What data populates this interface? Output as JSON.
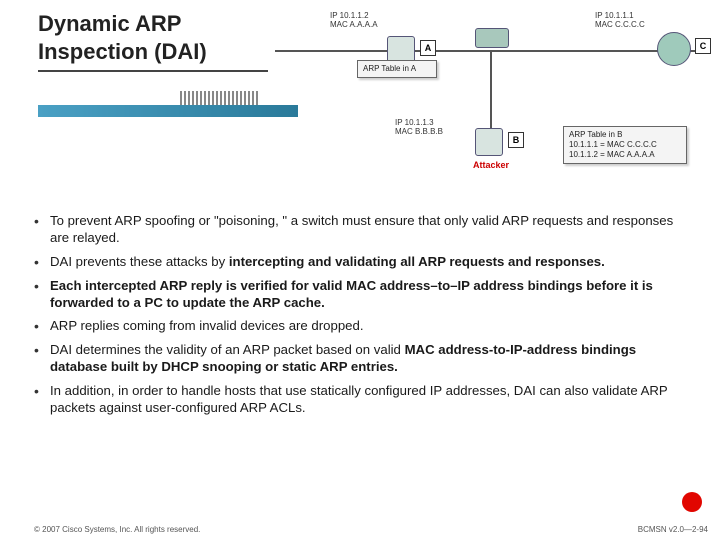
{
  "title_line1": "Dynamic ARP",
  "title_line2": "Inspection (DAI)",
  "diagram": {
    "hostA": {
      "ip": "IP 10.1.1.2",
      "mac": "MAC A.A.A.A",
      "letter": "A"
    },
    "hostB": {
      "ip": "IP 10.1.1.3",
      "mac": "MAC B.B.B.B",
      "letter": "B",
      "attacker_label": "Attacker"
    },
    "hostC": {
      "ip": "IP 10.1.1.1",
      "mac": "MAC C.C.C.C",
      "letter": "C"
    },
    "arp_a_title": "ARP Table in A",
    "arp_b_title": "ARP Table in B",
    "arp_b_rows": "10.1.1.1 = MAC C.C.C.C\n10.1.1.2 = MAC A.A.A.A"
  },
  "bullets": [
    "To prevent ARP spoofing or \"poisoning, \" a switch must ensure that only valid ARP requests and responses are relayed.",
    "DAI prevents these attacks by <b>intercepting and validating all ARP requests and responses.</b>",
    "<b>Each intercepted ARP reply is verified for valid MAC address–to–IP address bindings before it is forwarded to a PC to update the ARP cache.</b>",
    "ARP replies coming from invalid devices are dropped.",
    "DAI determines the validity of an ARP packet based on valid <b>MAC address-to-IP-address bindings database built by DHCP snooping or static ARP entries.</b>",
    "In addition, in order to handle hosts that use statically configured IP addresses, DAI can also validate ARP packets against user-configured ARP ACLs."
  ],
  "footer_left": "© 2007 Cisco Systems, Inc. All rights reserved.",
  "footer_right": "BCMSN v2.0—2-94",
  "colors": {
    "accent_bar": "#3a8fb0",
    "red_dot": "#e10600"
  }
}
